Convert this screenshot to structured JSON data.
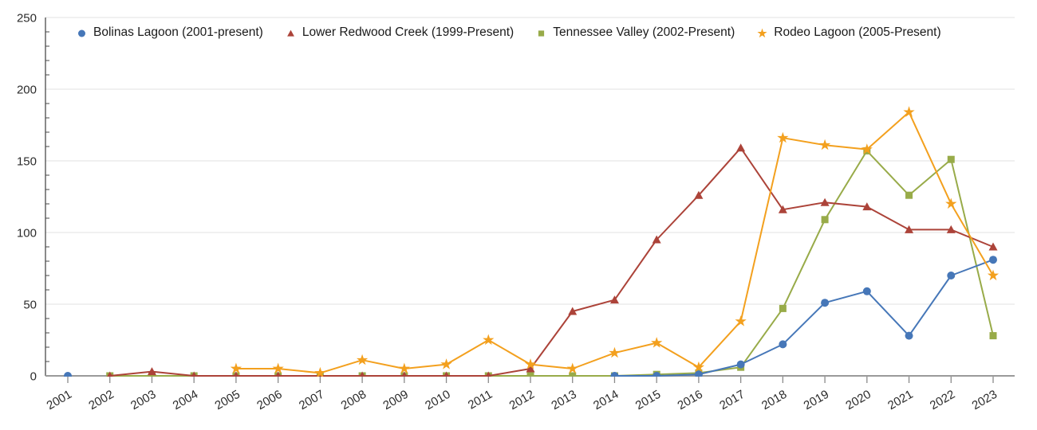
{
  "chart_data": {
    "type": "line",
    "title": "",
    "xlabel": "",
    "ylabel": "",
    "x": [
      "2001",
      "2002",
      "2003",
      "2004",
      "2005",
      "2006",
      "2007",
      "2008",
      "2009",
      "2010",
      "2011",
      "2012",
      "2013",
      "2014",
      "2015",
      "2016",
      "2017",
      "2018",
      "2019",
      "2020",
      "2021",
      "2022",
      "2023"
    ],
    "ylim": [
      0,
      250
    ],
    "yticks": [
      0,
      50,
      100,
      150,
      200,
      250
    ],
    "minor_tick_step": 10,
    "grid": "horizontal",
    "legend_position": "top-left",
    "axis_colors": {
      "y_axis": "#4a4a4a",
      "x_axis": "#9a9a9a",
      "gridline": "#e2e2e2",
      "tick": "#8a8a8a",
      "label": "#2b2b2b"
    },
    "series": [
      {
        "name": "Bolinas Lagoon (2001-present)",
        "marker": "circle",
        "color": "#4677b8",
        "values": [
          0,
          null,
          null,
          null,
          null,
          null,
          null,
          null,
          null,
          null,
          null,
          null,
          null,
          0,
          0,
          1,
          8,
          22,
          51,
          59,
          28,
          70,
          81
        ]
      },
      {
        "name": "Lower Redwood Creek (1999-Present)",
        "marker": "triangle",
        "color": "#ac4339",
        "values": [
          null,
          0,
          3,
          0,
          0,
          0,
          0,
          0,
          0,
          0,
          0,
          5,
          45,
          53,
          95,
          126,
          159,
          116,
          121,
          118,
          102,
          102,
          90
        ]
      },
      {
        "name": "Tennessee Valley (2002-Present)",
        "marker": "square",
        "color": "#98ab49",
        "values": [
          null,
          0,
          0,
          0,
          0,
          0,
          0,
          0,
          0,
          0,
          0,
          0,
          0,
          0,
          1,
          2,
          6,
          47,
          109,
          157,
          126,
          151,
          28
        ]
      },
      {
        "name": "Rodeo Lagoon (2005-Present)",
        "marker": "star",
        "color": "#f3a01e",
        "values": [
          null,
          null,
          null,
          null,
          5,
          5,
          2,
          11,
          5,
          8,
          25,
          8,
          5,
          16,
          23,
          6,
          38,
          166,
          161,
          158,
          184,
          120,
          70
        ]
      }
    ]
  }
}
